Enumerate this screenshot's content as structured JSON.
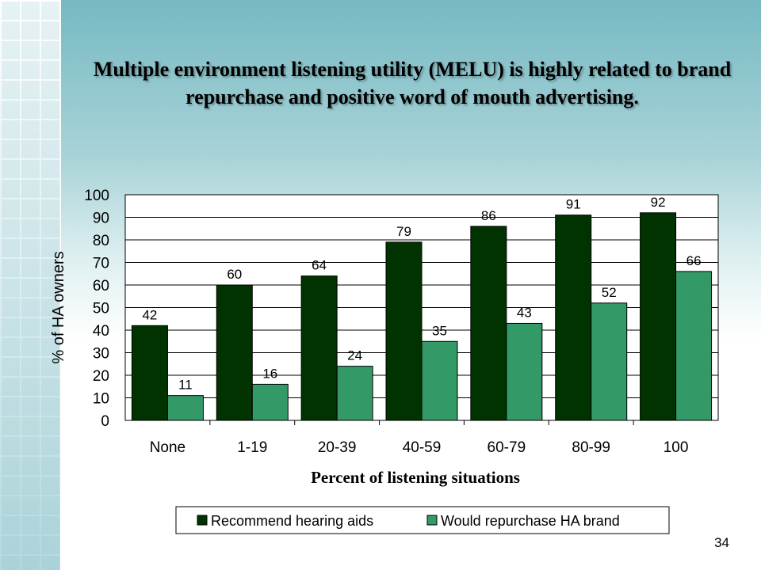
{
  "slide": {
    "title": "Multiple environment listening utility (MELU) is highly related to brand repurchase and positive word of mouth advertising.",
    "page_number": "34"
  },
  "chart_data": {
    "type": "bar",
    "categories": [
      "None",
      "1-19",
      "20-39",
      "40-59",
      "60-79",
      "80-99",
      "100"
    ],
    "series": [
      {
        "name": "Recommend hearing aids",
        "values": [
          42,
          60,
          64,
          79,
          86,
          91,
          92
        ],
        "color": "#003300"
      },
      {
        "name": "Would repurchase HA brand",
        "values": [
          11,
          16,
          24,
          35,
          43,
          52,
          66
        ],
        "color": "#339966"
      }
    ],
    "xlabel": "Percent of listening situations",
    "ylabel": "% of HA owners",
    "ylim": [
      0,
      100
    ],
    "yticks": [
      0,
      10,
      20,
      30,
      40,
      50,
      60,
      70,
      80,
      90,
      100
    ],
    "grid": "horizontal",
    "legend": "bottom",
    "data_labels": true
  }
}
